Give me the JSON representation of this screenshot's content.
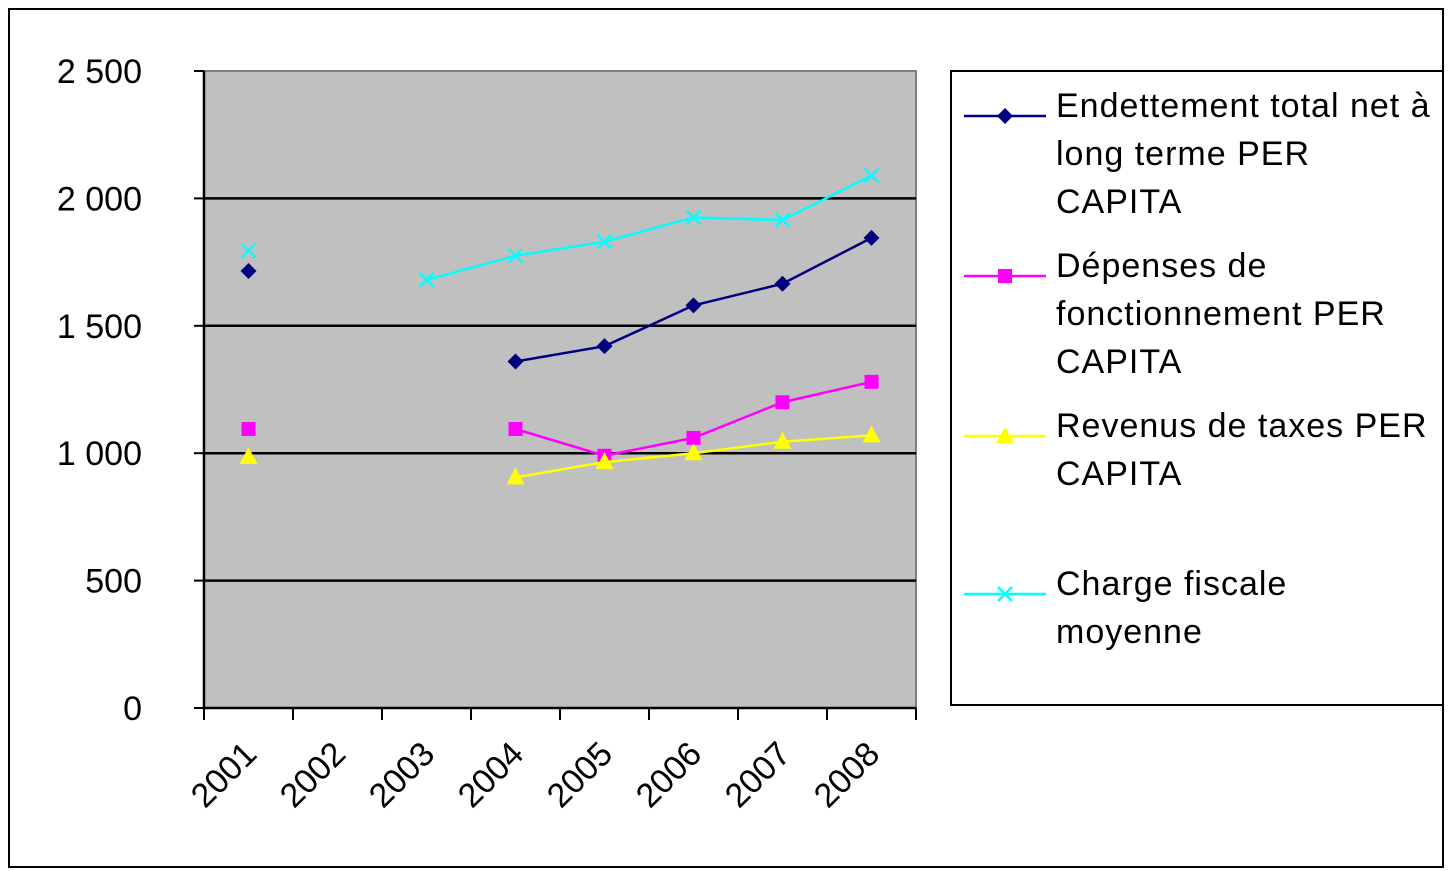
{
  "chart_data": {
    "type": "line",
    "categories": [
      "2001",
      "2002",
      "2003",
      "2004",
      "2005",
      "2006",
      "2007",
      "2008"
    ],
    "ylim": [
      0,
      2500
    ],
    "yticks": [
      0,
      500,
      1000,
      1500,
      2000,
      2500
    ],
    "ytick_labels": [
      "0",
      "500",
      "1 000",
      "1 500",
      "2 000",
      "2 500"
    ],
    "grid": true,
    "legend_position": "right",
    "plot_background": "#c0c0c0",
    "series": [
      {
        "name": "Endettement total net à long terme PER CAPITA",
        "color": "#000080",
        "marker": "diamond",
        "values": [
          1715,
          null,
          null,
          1360,
          1420,
          1580,
          1665,
          1845
        ]
      },
      {
        "name": "Dépenses de fonctionnement PER CAPITA",
        "color": "#ff00ff",
        "marker": "square",
        "values": [
          1095,
          null,
          null,
          1095,
          990,
          1060,
          1200,
          1280
        ]
      },
      {
        "name": "Revenus de taxes PER CAPITA",
        "color": "#ffff00",
        "marker": "triangle",
        "values": [
          985,
          null,
          null,
          905,
          965,
          1000,
          1045,
          1070
        ]
      },
      {
        "name": "Charge fiscale moyenne",
        "color": "#00ffff",
        "marker": "x",
        "values": [
          1795,
          null,
          1680,
          1775,
          1830,
          1925,
          1915,
          2090
        ]
      }
    ]
  }
}
